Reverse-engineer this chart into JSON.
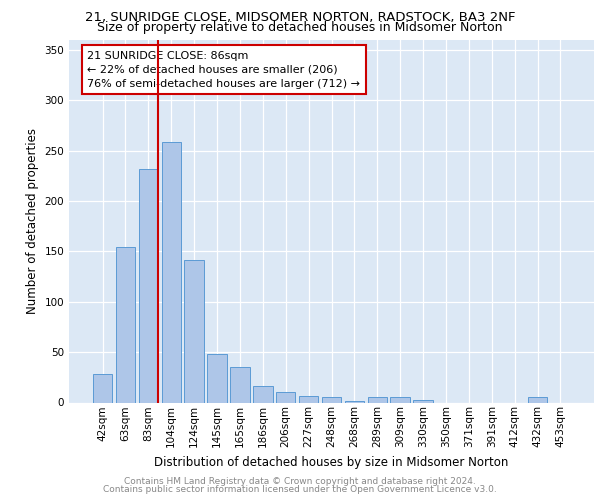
{
  "title1": "21, SUNRIDGE CLOSE, MIDSOMER NORTON, RADSTOCK, BA3 2NF",
  "title2": "Size of property relative to detached houses in Midsomer Norton",
  "xlabel": "Distribution of detached houses by size in Midsomer Norton",
  "ylabel": "Number of detached properties",
  "categories": [
    "42sqm",
    "63sqm",
    "83sqm",
    "104sqm",
    "124sqm",
    "145sqm",
    "165sqm",
    "186sqm",
    "206sqm",
    "227sqm",
    "248sqm",
    "268sqm",
    "289sqm",
    "309sqm",
    "330sqm",
    "350sqm",
    "371sqm",
    "391sqm",
    "412sqm",
    "432sqm",
    "453sqm"
  ],
  "values": [
    28,
    154,
    232,
    259,
    142,
    48,
    35,
    16,
    10,
    6,
    5,
    1,
    5,
    5,
    2,
    0,
    0,
    0,
    0,
    5,
    0
  ],
  "bar_color": "#aec6e8",
  "bar_edge_color": "#5b9bd5",
  "vline_index": 2,
  "vline_color": "#cc0000",
  "annotation_text": "21 SUNRIDGE CLOSE: 86sqm\n← 22% of detached houses are smaller (206)\n76% of semi-detached houses are larger (712) →",
  "annotation_box_color": "#ffffff",
  "annotation_box_edge": "#cc0000",
  "ylim": [
    0,
    360
  ],
  "yticks": [
    0,
    50,
    100,
    150,
    200,
    250,
    300,
    350
  ],
  "background_color": "#dce8f5",
  "footer1": "Contains HM Land Registry data © Crown copyright and database right 2024.",
  "footer2": "Contains public sector information licensed under the Open Government Licence v3.0.",
  "title_fontsize": 9.5,
  "subtitle_fontsize": 9,
  "axis_label_fontsize": 8.5,
  "tick_fontsize": 7.5,
  "annotation_fontsize": 8,
  "footer_fontsize": 6.5
}
